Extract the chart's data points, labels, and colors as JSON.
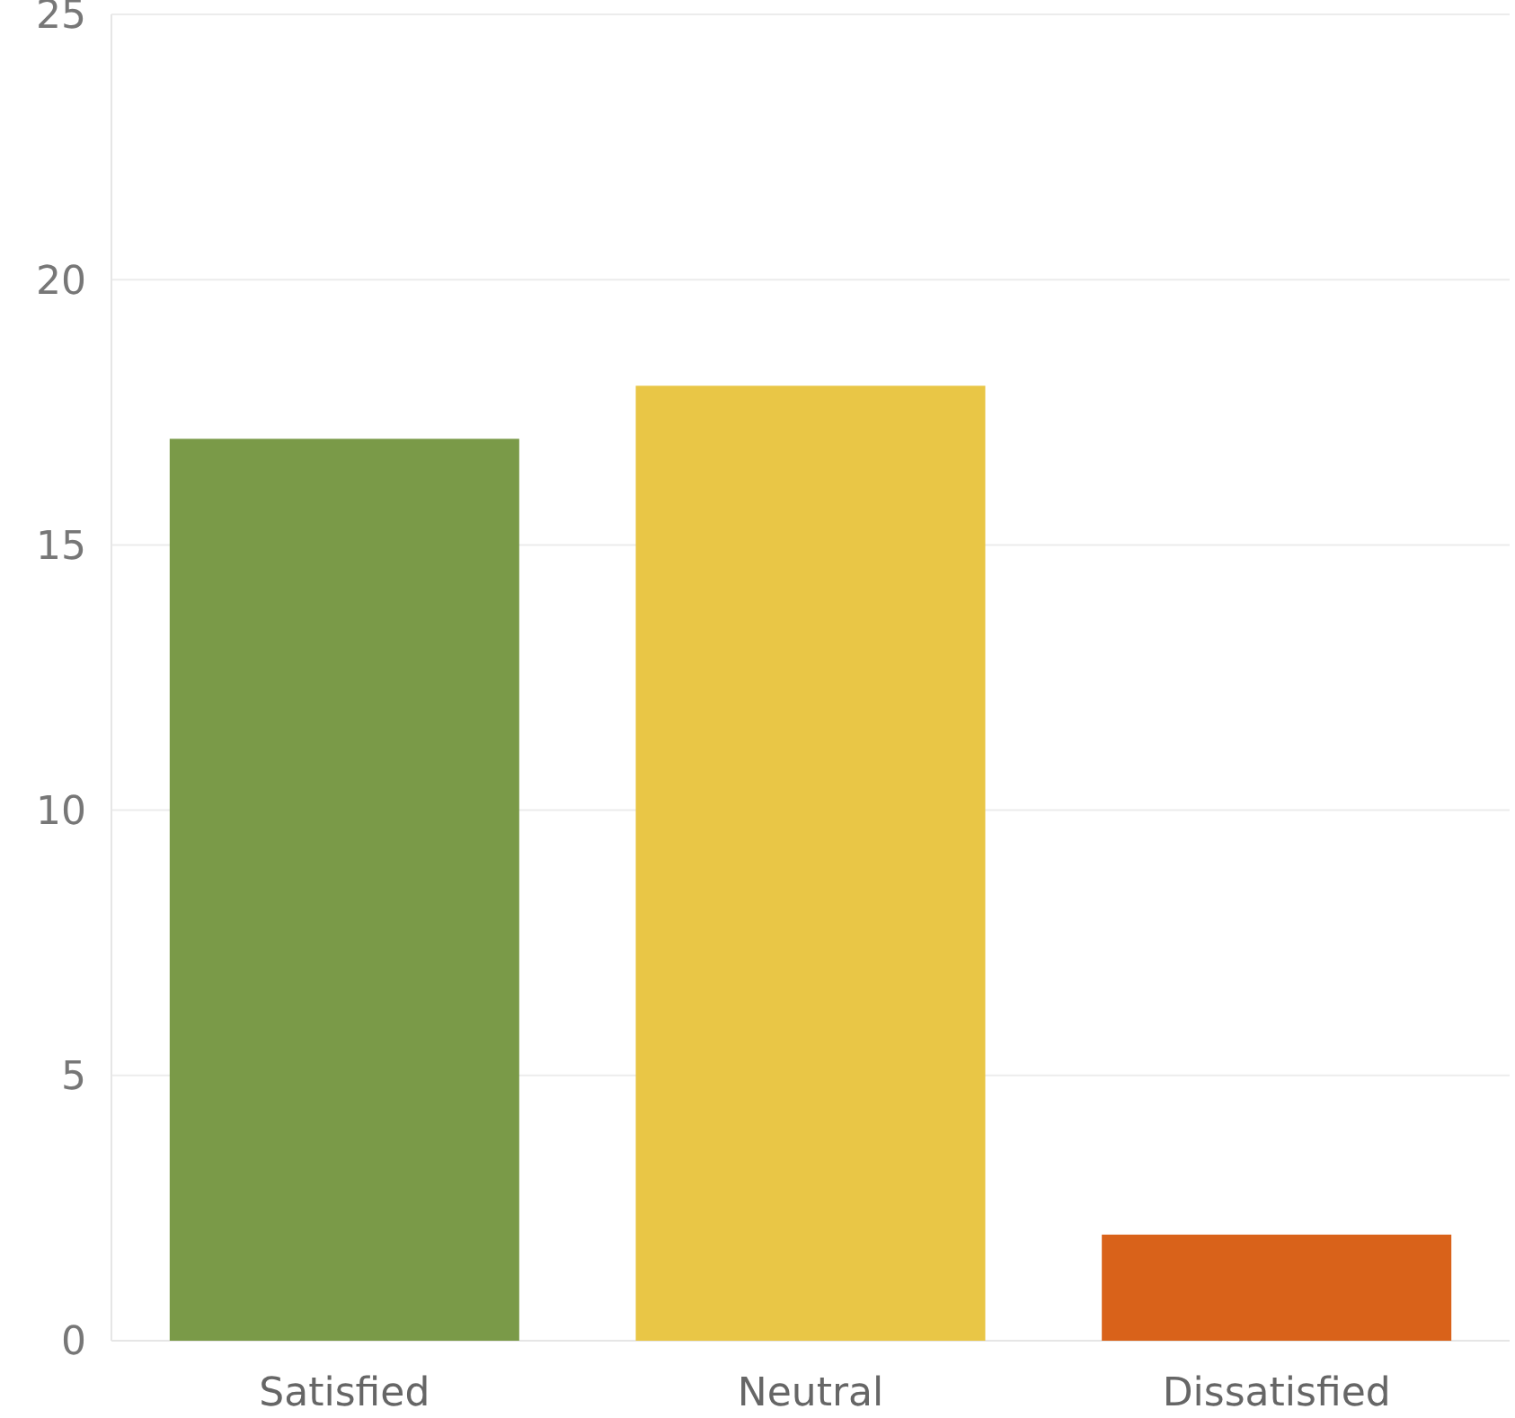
{
  "chart_data": {
    "type": "bar",
    "categories": [
      "Satisfied",
      "Neutral",
      "Dissatisfied"
    ],
    "values": [
      17,
      18,
      2
    ],
    "colors": [
      "#7a9a48",
      "#e9c646",
      "#d9621a"
    ],
    "ylim": [
      0,
      25
    ],
    "yticks": [
      0,
      5,
      10,
      15,
      20,
      25
    ],
    "grid": "y"
  }
}
